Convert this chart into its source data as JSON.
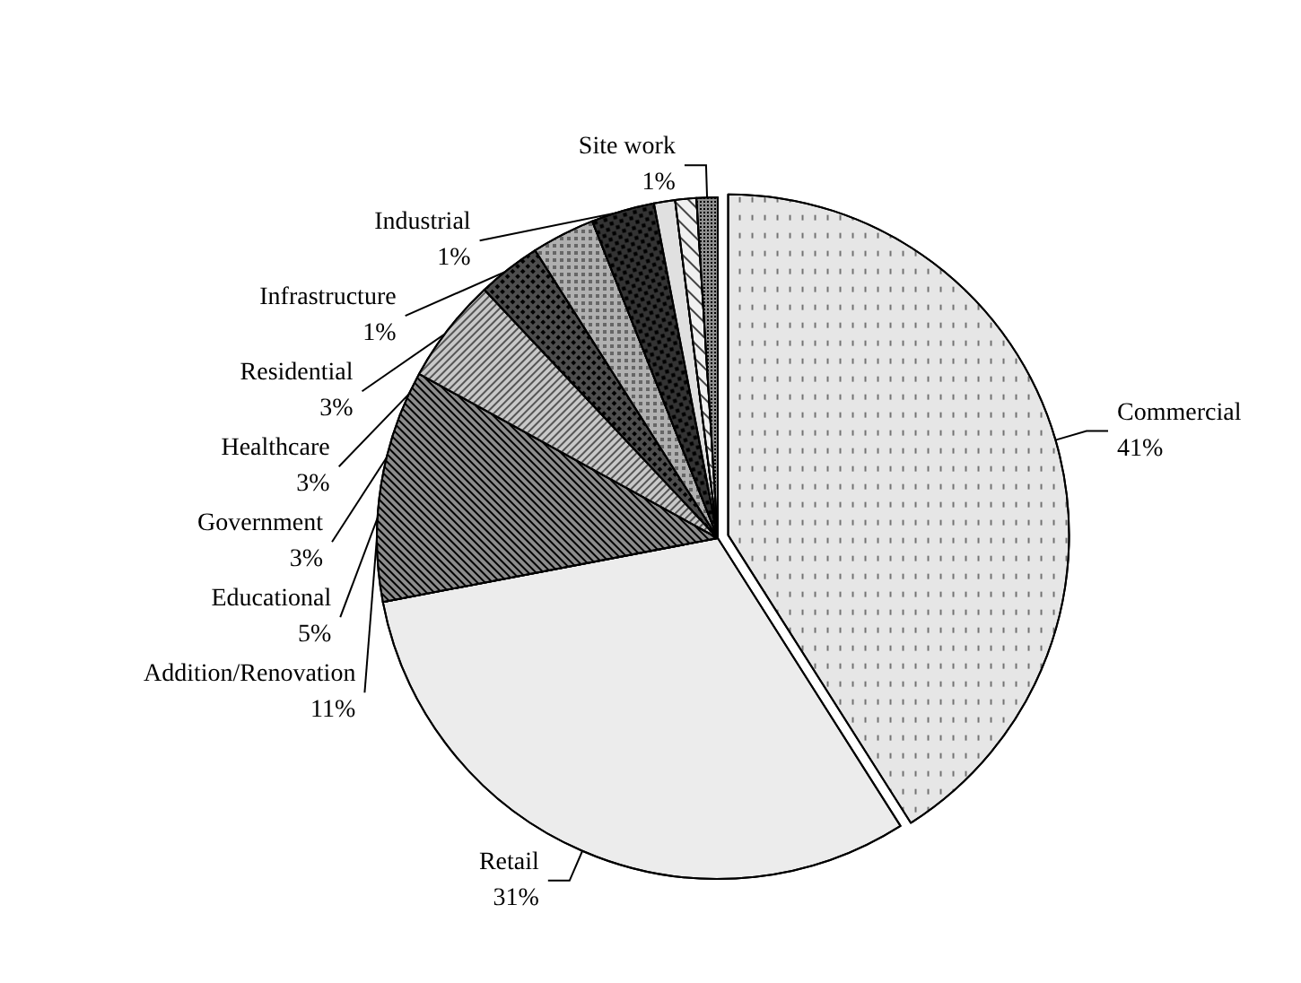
{
  "chart_data": {
    "type": "pie",
    "categories": [
      "Commercial",
      "Retail",
      "Addition/Renovation",
      "Educational",
      "Government",
      "Healthcare",
      "Residential",
      "Infrastructure",
      "Industrial",
      "Site work"
    ],
    "values": [
      41,
      31,
      11,
      5,
      3,
      3,
      3,
      1,
      1,
      1
    ],
    "value_labels": [
      "41%",
      "31%",
      "11%",
      "5%",
      "3%",
      "3%",
      "3%",
      "1%",
      "1%",
      "1%"
    ],
    "colors": [
      "#e6e6e6",
      "#ececec",
      "#8c8c8c",
      "#c8c8c8",
      "#4d4d4d",
      "#b0b0b0",
      "#333333",
      "#e0e0e0",
      "#f0f0f0",
      "#909090"
    ],
    "legend": false
  }
}
